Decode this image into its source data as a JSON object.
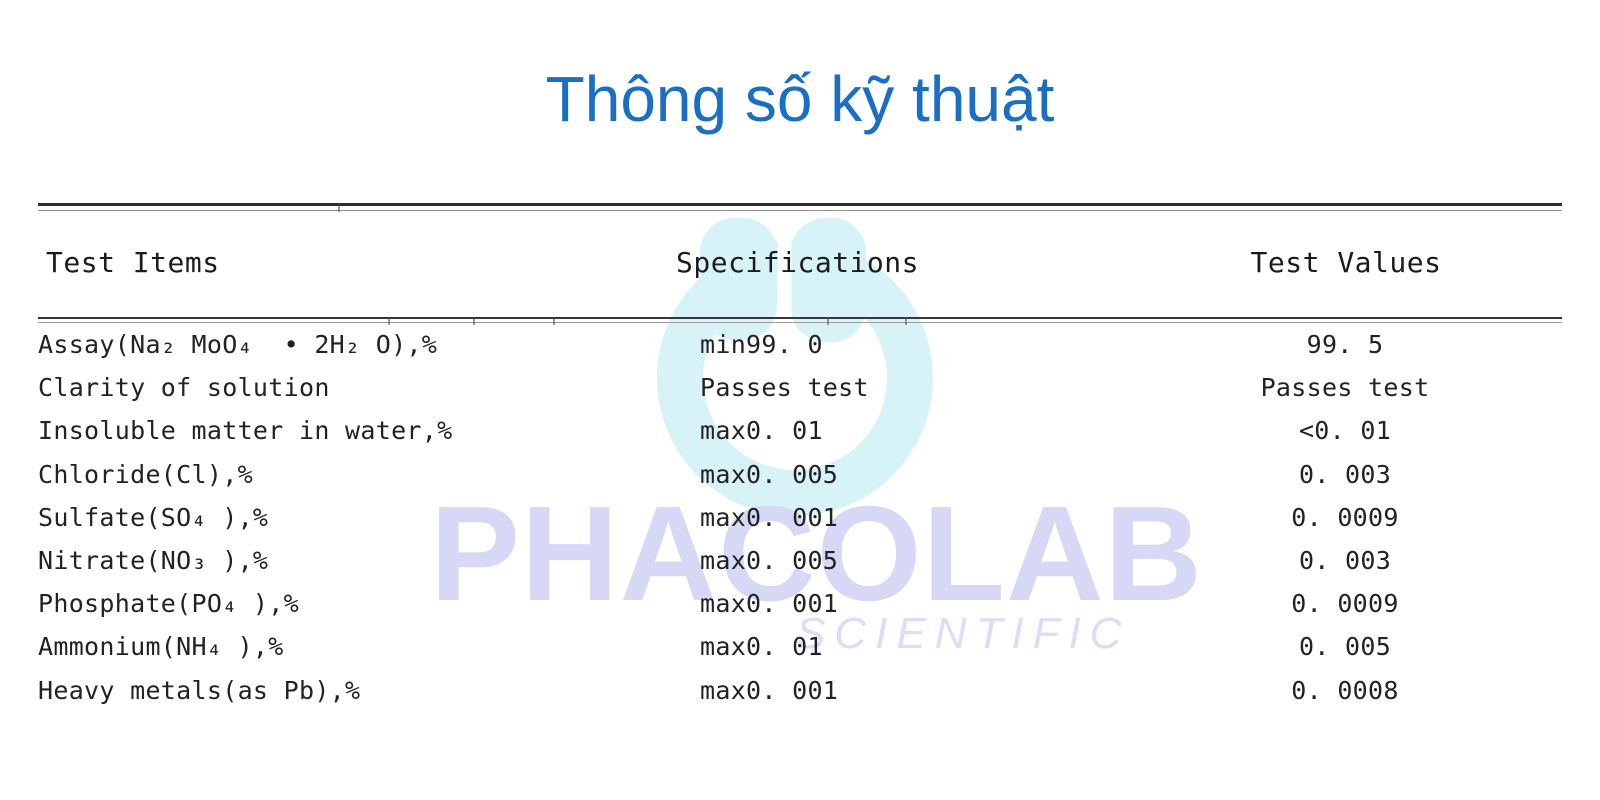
{
  "title": "Thông số kỹ thuật",
  "colors": {
    "title_accent": "#1a6fc5",
    "watermark_brand": "#d6d8f6",
    "watermark_sub": "#dcdef9",
    "watermark_logo": "#d8f3f7",
    "body_text": "#222222"
  },
  "watermark": {
    "brand": "PHACOLAB",
    "sub": "SCIENTIFIC",
    "logo_icon": "droplet-ring-logo"
  },
  "table": {
    "headers": [
      "Test Items",
      "Specifications",
      "Test Values"
    ],
    "rows": [
      {
        "item": "Assay(Na₂ MoO₄  • 2H₂ O),%",
        "spec": "min99. 0",
        "value": "99. 5"
      },
      {
        "item": "Clarity of solution",
        "spec": "Passes test",
        "value": "Passes test"
      },
      {
        "item": "Insoluble matter in water,%",
        "spec": "max0. 01",
        "value": "<0. 01"
      },
      {
        "item": "Chloride(Cl),%",
        "spec": "max0. 005",
        "value": "0. 003"
      },
      {
        "item": "Sulfate(SO₄ ),%",
        "spec": "max0. 001",
        "value": "0. 0009"
      },
      {
        "item": "Nitrate(NO₃ ),%",
        "spec": "max0. 005",
        "value": "0. 003"
      },
      {
        "item": "Phosphate(PO₄ ),%",
        "spec": "max0. 001",
        "value": "0. 0009"
      },
      {
        "item": "Ammonium(NH₄ ),%",
        "spec": "max0. 01",
        "value": "0. 005"
      },
      {
        "item": "Heavy metals(as Pb),%",
        "spec": "max0. 001",
        "value": "0. 0008"
      }
    ]
  }
}
